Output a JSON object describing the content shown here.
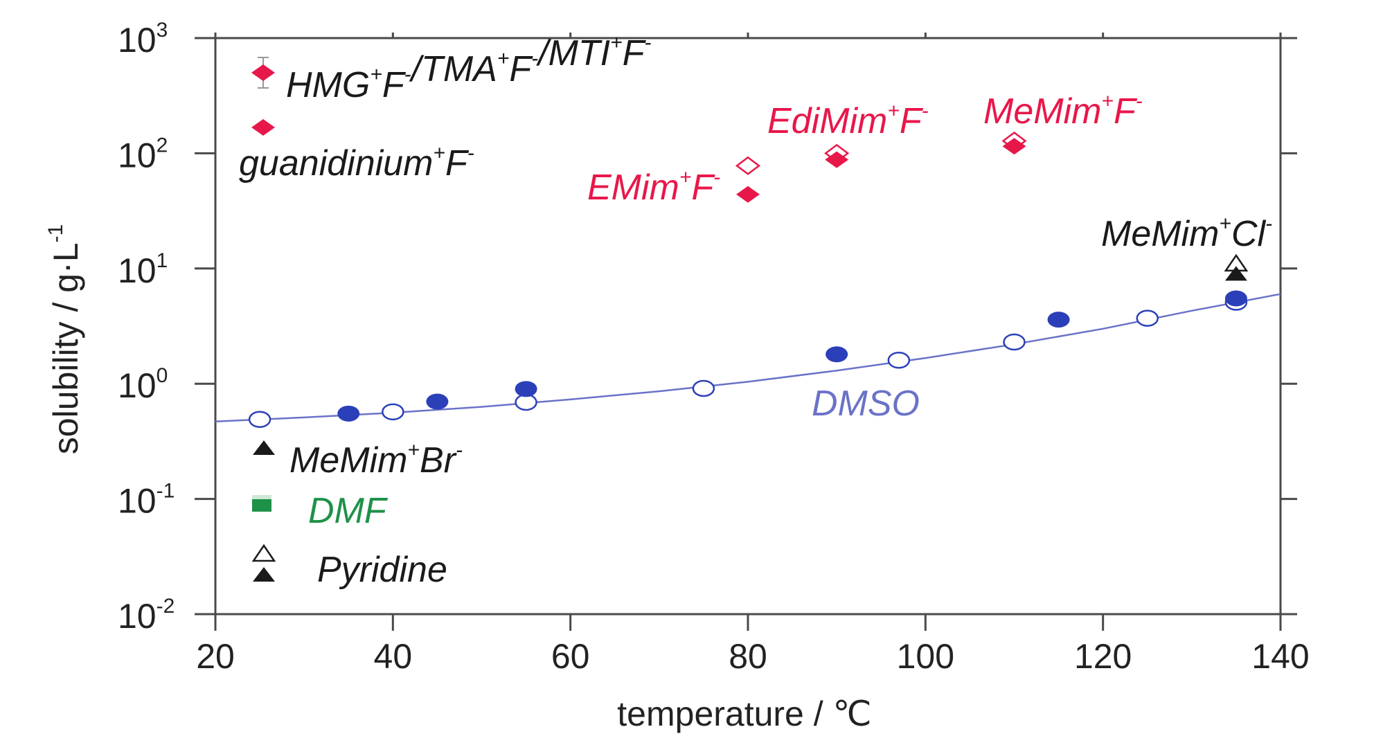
{
  "chart_data": {
    "type": "scatter",
    "title": "",
    "xlabel": "temperature / ℃",
    "ylabel": "solubility / g·L",
    "ylabel_exp": "-1",
    "x_range": [
      20,
      140
    ],
    "y_log_range": [
      -2,
      3
    ],
    "y_scale": "log",
    "grid": false,
    "x_ticks": [
      "20",
      "40",
      "60",
      "80",
      "100",
      "120",
      "140"
    ],
    "y_ticks": [
      {
        "base": "10",
        "exp": "3"
      },
      {
        "base": "10",
        "exp": "2"
      },
      {
        "base": "10",
        "exp": "1"
      },
      {
        "base": "10",
        "exp": "0"
      },
      {
        "base": "10",
        "exp": "-1"
      },
      {
        "base": "10",
        "exp": "-2"
      }
    ],
    "colors": {
      "fluoride": "#e8174a",
      "dmso": "#2b3fb8",
      "dmso_line": "#6a72c8",
      "dmf": "#1e9148",
      "black": "#1a1a1a"
    },
    "series": [
      {
        "marker": "circle-open",
        "color": "#2b3fb8",
        "points": [
          [
            25,
            0.49
          ],
          [
            40,
            0.57
          ],
          [
            55,
            0.69
          ],
          [
            75,
            0.91
          ],
          [
            97,
            1.6
          ],
          [
            110,
            2.3
          ],
          [
            125,
            3.7
          ],
          [
            135,
            5.1
          ]
        ]
      },
      {
        "marker": "circle-filled",
        "color": "#2b3fb8",
        "points": [
          [
            35,
            0.55
          ],
          [
            45,
            0.7
          ],
          [
            55,
            0.9
          ],
          [
            90,
            1.8
          ],
          [
            115,
            3.6
          ],
          [
            135,
            5.5
          ]
        ]
      },
      {
        "marker": "diamond-open",
        "color": "#e8174a",
        "points": [
          [
            80,
            78
          ],
          [
            90,
            100
          ],
          [
            110,
            128
          ]
        ]
      },
      {
        "marker": "diamond-filled",
        "color": "#e8174a",
        "points": [
          [
            80,
            44
          ],
          [
            90,
            88
          ],
          [
            110,
            115
          ]
        ]
      },
      {
        "marker": "triangle-open",
        "color": "#1a1a1a",
        "points": [
          [
            135,
            11
          ]
        ]
      },
      {
        "marker": "triangle-filled",
        "color": "#1a1a1a",
        "points": [
          [
            135,
            9
          ]
        ]
      }
    ],
    "dmso_fit": [
      [
        20,
        0.47
      ],
      [
        30,
        0.51
      ],
      [
        40,
        0.56
      ],
      [
        50,
        0.63
      ],
      [
        60,
        0.73
      ],
      [
        70,
        0.86
      ],
      [
        80,
        1.04
      ],
      [
        90,
        1.3
      ],
      [
        100,
        1.67
      ],
      [
        110,
        2.2
      ],
      [
        120,
        3.0
      ],
      [
        130,
        4.3
      ],
      [
        140,
        6.0
      ]
    ],
    "annotations": {
      "emim": {
        "base": "EMim",
        "sup1": "+",
        "mid": "F",
        "sup2": "-"
      },
      "edimim": {
        "base": "EdiMim",
        "sup1": "+",
        "mid": "F",
        "sup2": "-"
      },
      "memim_f": {
        "base": "MeMim",
        "sup1": "+",
        "mid": "F",
        "sup2": "-"
      },
      "memim_cl": {
        "base": "MeMim",
        "sup1": "+",
        "mid": "Cl",
        "sup2": "-"
      },
      "dmso": "DMSO"
    },
    "legend": [
      {
        "marker": "diamond-errorbar",
        "parts": [
          [
            "HMG",
            "+",
            "F",
            "-"
          ],
          [
            "/TMA",
            "+",
            "F",
            "-"
          ],
          [
            "/MTI",
            "+",
            "F",
            "-"
          ]
        ]
      },
      {
        "marker": "diamond-filled",
        "base": "guanidinium",
        "sup1": "+",
        "mid": "F",
        "sup2": "-"
      },
      {
        "marker": "triangle-filled",
        "base": "MeMim",
        "sup1": "+",
        "mid": "Br",
        "sup2": "-"
      },
      {
        "marker": "square-filled",
        "label": "DMF"
      },
      {
        "marker": "triangle-pair",
        "label": "Pyridine"
      }
    ]
  }
}
